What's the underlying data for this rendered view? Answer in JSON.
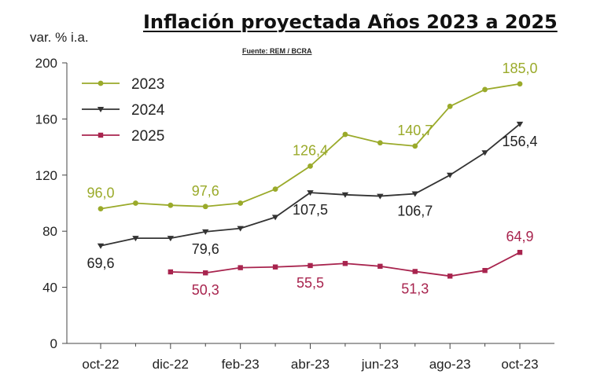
{
  "chart_data": {
    "type": "line",
    "title": "Inflación proyectada Años 2023 a 2025",
    "subtitle": "Fuente: REM / BCRA",
    "xlabel": "",
    "ylabel": "var. % i.a.",
    "ylim": [
      0,
      200
    ],
    "yticks": [
      0,
      40,
      80,
      120,
      160,
      200
    ],
    "categories": [
      "oct-22",
      "nov-22",
      "dic-22",
      "ene-23",
      "feb-23",
      "mar-23",
      "abr-23",
      "may-23",
      "jun-23",
      "jul-23",
      "ago-23",
      "sep-23",
      "oct-23"
    ],
    "tick_labels": [
      "oct-22",
      "dic-22",
      "feb-23",
      "abr-23",
      "jun-23",
      "ago-23",
      "oct-23"
    ],
    "grid": false,
    "legend_position": "top-left",
    "series": [
      {
        "name": "2023",
        "color": "#9aaa2a",
        "marker": "circle",
        "values": [
          96.0,
          100.0,
          98.5,
          97.6,
          100.0,
          110.0,
          126.4,
          149.0,
          143.0,
          140.7,
          169.0,
          181.0,
          185.0
        ],
        "labels": [
          {
            "index": 0,
            "text": "96,0",
            "pos": "above"
          },
          {
            "index": 3,
            "text": "97,6",
            "pos": "above"
          },
          {
            "index": 6,
            "text": "126,4",
            "pos": "above"
          },
          {
            "index": 9,
            "text": "140,7",
            "pos": "above"
          },
          {
            "index": 12,
            "text": "185,0",
            "pos": "above"
          }
        ]
      },
      {
        "name": "2024",
        "color": "#333333",
        "marker": "triangle-down",
        "values": [
          69.6,
          75.0,
          75.0,
          79.6,
          82.0,
          90.0,
          107.5,
          106.0,
          105.0,
          106.7,
          120.0,
          136.0,
          156.4
        ],
        "labels": [
          {
            "index": 0,
            "text": "69,6",
            "pos": "below"
          },
          {
            "index": 3,
            "text": "79,6",
            "pos": "below"
          },
          {
            "index": 6,
            "text": "107,5",
            "pos": "below"
          },
          {
            "index": 9,
            "text": "106,7",
            "pos": "below"
          },
          {
            "index": 12,
            "text": "156,4",
            "pos": "below"
          }
        ]
      },
      {
        "name": "2025",
        "color": "#a8244e",
        "marker": "square",
        "values": [
          null,
          null,
          51.0,
          50.3,
          54.0,
          54.5,
          55.5,
          57.0,
          55.0,
          51.3,
          48.0,
          52.0,
          64.9
        ],
        "labels": [
          {
            "index": 3,
            "text": "50,3",
            "pos": "below"
          },
          {
            "index": 6,
            "text": "55,5",
            "pos": "below"
          },
          {
            "index": 9,
            "text": "51,3",
            "pos": "below"
          },
          {
            "index": 12,
            "text": "64,9",
            "pos": "above"
          }
        ]
      }
    ]
  }
}
